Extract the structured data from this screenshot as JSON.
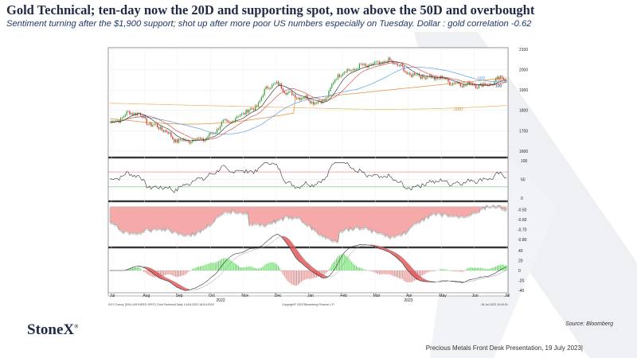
{
  "header": {
    "title": "Gold Technical; ten-day now the 20D and supporting spot, now above the 50D and overbought",
    "subtitle": "Sentiment turning after the $1,900 support; shot up after more poor US numbers especially on Tuesday.  Dollar : gold correlation -0.62"
  },
  "brand": {
    "logo_text": "StoneX",
    "logo_mark": "®",
    "source": "Source:  Bloomberg",
    "footer": "Precious Metals Front Desk Presentation, 19 July 2023|"
  },
  "colors": {
    "navy": "#1f2a44",
    "ma50": "#5aa0e6",
    "ma100": "#d9534f",
    "ma200": "#e08a2e",
    "ma2000": "#f0b060",
    "corr_fill": "#f6a9a9",
    "macd_pos": "#3dd63d",
    "macd_fill": "#e05555"
  },
  "chart_data": {
    "type": "line",
    "x": [
      "Jul",
      "Aug",
      "Sep",
      "Oct",
      "Nov",
      "Dec",
      "Jan",
      "Feb",
      "Mar",
      "Apr",
      "May",
      "Jun",
      "Jul"
    ],
    "year_labels": [
      "2022",
      "2023"
    ],
    "price_panel": {
      "ylim": [
        1580,
        2100
      ],
      "yticks": [
        "2100",
        "2000",
        "1900",
        "1800",
        "1700",
        "1600"
      ],
      "ma_labels": [
        "50D",
        "100",
        "200",
        "2000"
      ],
      "close": [
        1740,
        1790,
        1720,
        1650,
        1660,
        1740,
        1800,
        1930,
        1870,
        1840,
        1990,
        2020,
        2040,
        1975,
        1960,
        1930,
        1925,
        1960
      ]
    },
    "rsi_panel": {
      "ylim": [
        0,
        100
      ],
      "yticks": [
        "100",
        "50",
        "0"
      ],
      "levels": [
        70,
        30
      ]
    },
    "correlation_panel": {
      "ylim": [
        -0.85,
        -0.45
      ],
      "yticks": [
        "-0.50",
        "-0.60",
        "-0.70",
        "-0.80"
      ]
    },
    "macd_panel": {
      "ylim": [
        -40,
        40
      ],
      "yticks": [
        "40",
        "20",
        "0",
        "-20",
        "-40"
      ]
    },
    "chart_footer": {
      "left": "DXY Curncy (DOLLAR INDEX SPOT)  Gold Technical   Daily 14JUL2022-18JUL2023",
      "center": "Copyright© 2023 Bloomberg Finance L.P.",
      "right": "18-Jul-2023 15:40:51"
    }
  }
}
